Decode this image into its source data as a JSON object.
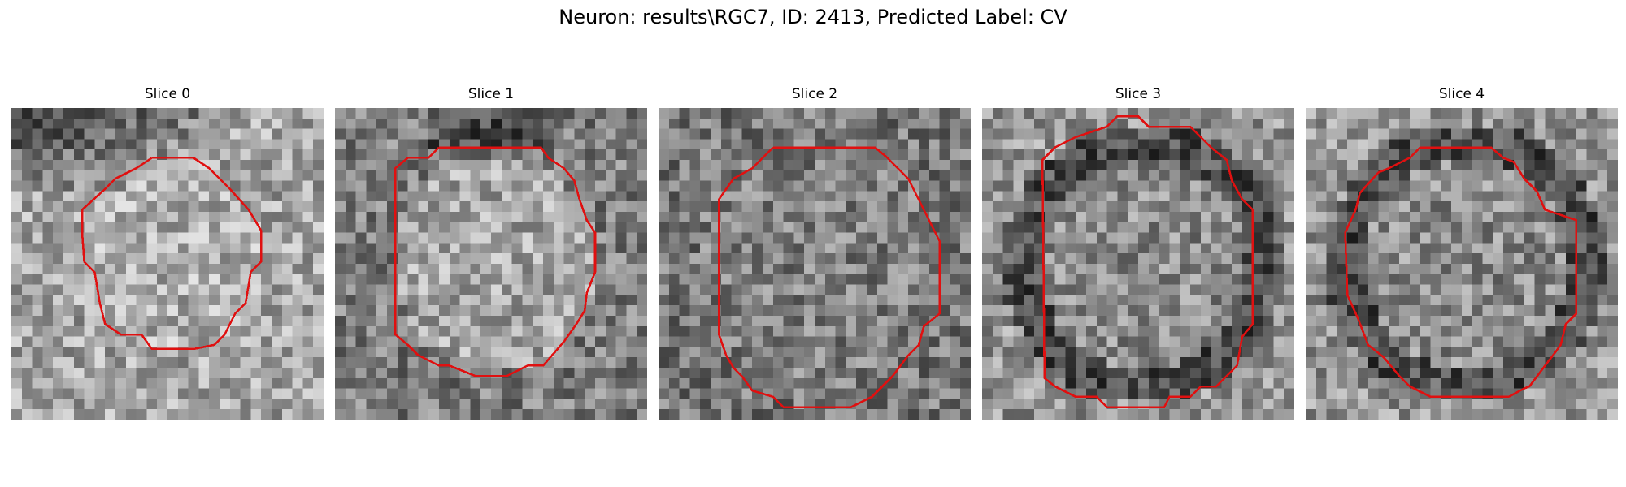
{
  "figure": {
    "title": "Neuron: results\\RGC7, ID: 2413, Predicted Label: CV"
  },
  "panels": [
    {
      "title": "Slice 0",
      "background": "bright-top-dark",
      "contour_color": "#e01010"
    },
    {
      "title": "Slice 1",
      "background": "mixed",
      "contour_color": "#e01010"
    },
    {
      "title": "Slice 2",
      "background": "mid-gray",
      "contour_color": "#e01010"
    },
    {
      "title": "Slice 3",
      "background": "dark-ring",
      "contour_color": "#e01010"
    },
    {
      "title": "Slice 4",
      "background": "dark-ring",
      "contour_color": "#e01010"
    }
  ]
}
